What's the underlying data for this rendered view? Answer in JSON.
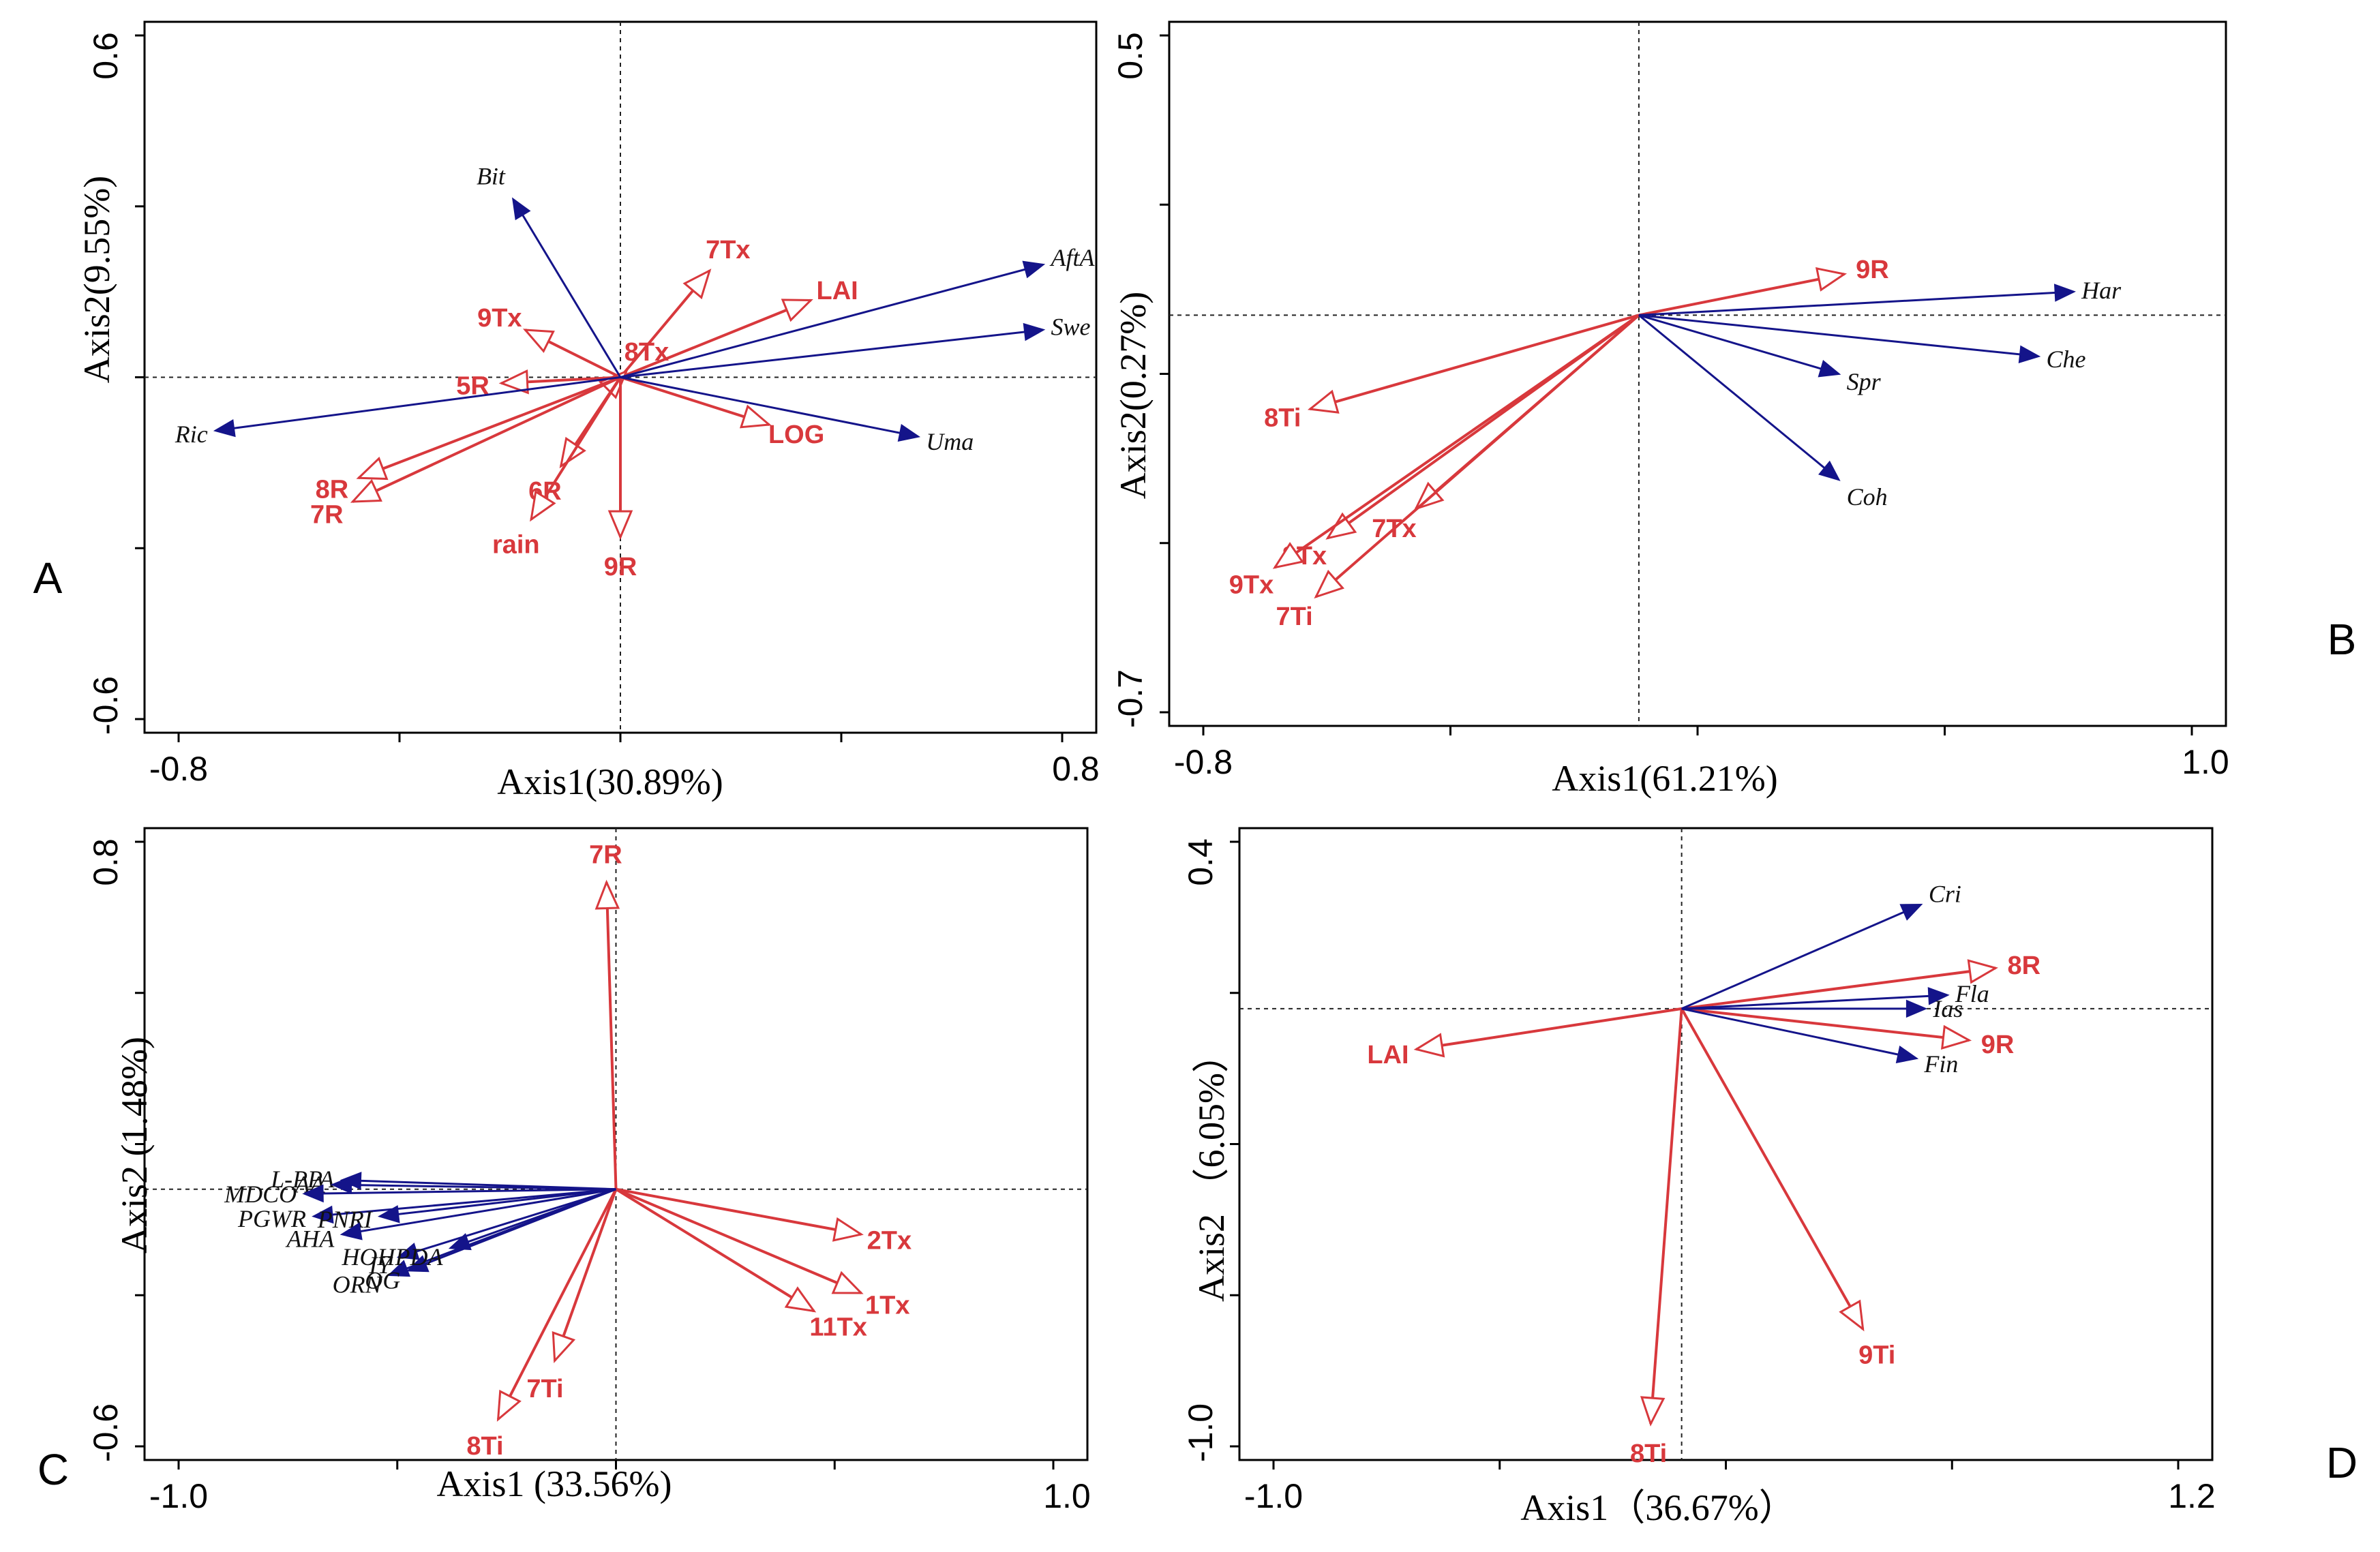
{
  "colors": {
    "env": "#d8383c",
    "resp": "#14148a"
  },
  "chart_data": [
    {
      "type": "ordination-biplot",
      "panel_label": "A",
      "xlabel": "Axis1(30.89%)",
      "ylabel": "Axis2(9.55%)",
      "xlim": [
        -0.8,
        0.8
      ],
      "ylim": [
        -0.6,
        0.6
      ],
      "x_tick_labels": [
        "-0.8",
        "0.8"
      ],
      "y_tick_labels": [
        "-0.6",
        "0.6"
      ],
      "responses": [
        {
          "name": "Bit",
          "x": -0.18,
          "y": 0.3
        },
        {
          "name": "AftA",
          "x": 0.71,
          "y": 0.19
        },
        {
          "name": "Swe",
          "x": 0.71,
          "y": 0.08
        },
        {
          "name": "Ric",
          "x": -0.68,
          "y": -0.09
        },
        {
          "name": "Uma",
          "x": 0.5,
          "y": -0.1
        }
      ],
      "environment": [
        {
          "name": "7Tx",
          "x": 0.15,
          "y": 0.18
        },
        {
          "name": "LAI",
          "x": 0.32,
          "y": 0.13
        },
        {
          "name": "9Tx",
          "x": -0.16,
          "y": 0.08
        },
        {
          "name": "8Tx",
          "x": 0.01,
          "y": 0.01
        },
        {
          "name": "5R",
          "x": -0.2,
          "y": -0.01
        },
        {
          "name": "LOG",
          "x": 0.25,
          "y": -0.08
        },
        {
          "name": "8R",
          "x": -0.44,
          "y": -0.17
        },
        {
          "name": "7R",
          "x": -0.45,
          "y": -0.21
        },
        {
          "name": "6R",
          "x": -0.1,
          "y": -0.15
        },
        {
          "name": "rain",
          "x": -0.15,
          "y": -0.24
        },
        {
          "name": "9R",
          "x": 0.0,
          "y": -0.27
        }
      ]
    },
    {
      "type": "ordination-biplot",
      "panel_label": "B",
      "xlabel": "Axis1(61.21%)",
      "ylabel": "Axis2(0.27%)",
      "xlim": [
        -0.8,
        1.0
      ],
      "ylim": [
        -0.7,
        0.5
      ],
      "x_tick_labels": [
        "-0.8",
        "1.0"
      ],
      "y_tick_labels": [
        "-0.7",
        "0.5"
      ],
      "responses": [
        {
          "name": "Har",
          "x": 0.74,
          "y": 0.04
        },
        {
          "name": "Che",
          "x": 0.68,
          "y": -0.07
        },
        {
          "name": "Spr",
          "x": 0.34,
          "y": -0.1
        },
        {
          "name": "Coh",
          "x": 0.34,
          "y": -0.28
        }
      ],
      "environment": [
        {
          "name": "9R",
          "x": 0.35,
          "y": 0.07
        },
        {
          "name": "8Ti",
          "x": -0.56,
          "y": -0.16
        },
        {
          "name": "8Tx",
          "x": -0.53,
          "y": -0.38
        },
        {
          "name": "7Tx",
          "x": -0.38,
          "y": -0.33
        },
        {
          "name": "9Tx",
          "x": -0.62,
          "y": -0.43
        },
        {
          "name": "7Ti",
          "x": -0.55,
          "y": -0.48
        }
      ]
    },
    {
      "type": "ordination-biplot",
      "panel_label": "C",
      "xlabel": "Axis1 (33.56%)",
      "ylabel": "Axis2 (1.48%)",
      "xlim": [
        -1.0,
        1.0
      ],
      "ylim": [
        -0.6,
        0.8
      ],
      "x_tick_labels": [
        "-1.0",
        "1.0"
      ],
      "y_tick_labels": [
        "-0.6",
        "0.8"
      ],
      "responses": [
        {
          "name": "L-PPA",
          "x": -0.58,
          "y": 0.02
        },
        {
          "name": "AA",
          "x": -0.6,
          "y": 0.01
        },
        {
          "name": "MDCO",
          "x": -0.66,
          "y": -0.01
        },
        {
          "name": "PGWR",
          "x": -0.64,
          "y": -0.06
        },
        {
          "name": "PNRI",
          "x": -0.5,
          "y": -0.06
        },
        {
          "name": "AHA",
          "x": -0.58,
          "y": -0.1
        },
        {
          "name": "IY",
          "x": -0.46,
          "y": -0.15
        },
        {
          "name": "ORN",
          "x": -0.48,
          "y": -0.19
        },
        {
          "name": "OG",
          "x": -0.44,
          "y": -0.18
        },
        {
          "name": "HOHPDA",
          "x": -0.35,
          "y": -0.13
        }
      ],
      "environment": [
        {
          "name": "7R",
          "x": -0.02,
          "y": 0.68
        },
        {
          "name": "2Tx",
          "x": 0.52,
          "y": -0.1
        },
        {
          "name": "1Tx",
          "x": 0.52,
          "y": -0.23
        },
        {
          "name": "11Tx",
          "x": 0.42,
          "y": -0.27
        },
        {
          "name": "7Ti",
          "x": -0.13,
          "y": -0.38
        },
        {
          "name": "8Ti",
          "x": -0.25,
          "y": -0.51
        }
      ]
    },
    {
      "type": "ordination-biplot",
      "panel_label": "D",
      "xlabel": "Axis1（36.67%）",
      "ylabel": "Axis2 （6.05%）",
      "xlim": [
        -1.0,
        1.2
      ],
      "ylim": [
        -1.0,
        0.4
      ],
      "x_tick_labels": [
        "-1.0",
        "1.2"
      ],
      "y_tick_labels": [
        "-1.0",
        "0.4"
      ],
      "responses": [
        {
          "name": "Cri",
          "x": 0.54,
          "y": 0.23
        },
        {
          "name": "Fla",
          "x": 0.6,
          "y": 0.03
        },
        {
          "name": "Ias",
          "x": 0.55,
          "y": 0.0
        },
        {
          "name": "Fin",
          "x": 0.53,
          "y": -0.11
        }
      ],
      "environment": [
        {
          "name": "8R",
          "x": 0.71,
          "y": 0.09
        },
        {
          "name": "9R",
          "x": 0.65,
          "y": -0.07
        },
        {
          "name": "LAI",
          "x": -0.6,
          "y": -0.09
        },
        {
          "name": "9Ti",
          "x": 0.41,
          "y": -0.71
        },
        {
          "name": "8Ti",
          "x": -0.07,
          "y": -0.92
        }
      ]
    }
  ]
}
